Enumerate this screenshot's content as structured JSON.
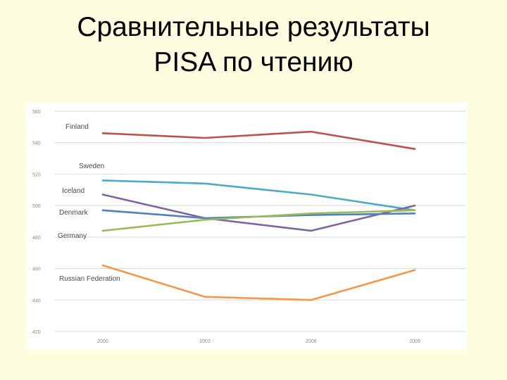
{
  "slide": {
    "title_line1": "Сравнительные результаты",
    "title_line2": "PISA по чтению"
  },
  "chart_data": {
    "type": "line",
    "title": "",
    "xlabel": "",
    "ylabel": "",
    "x": [
      "2000",
      "2003",
      "2006",
      "2009"
    ],
    "ylim": [
      420,
      560
    ],
    "yticks": [
      420,
      440,
      460,
      480,
      500,
      520,
      540,
      560
    ],
    "grid": true,
    "legend": "inline-left",
    "series": [
      {
        "name": "Finland",
        "values": [
          546,
          543,
          547,
          536
        ],
        "color": "#c0504d"
      },
      {
        "name": "Sweden",
        "values": [
          516,
          514,
          507,
          497
        ],
        "color": "#4bacc6"
      },
      {
        "name": "Iceland",
        "values": [
          507,
          492,
          484,
          500
        ],
        "color": "#8064a2"
      },
      {
        "name": "Denmark",
        "values": [
          497,
          492,
          494,
          495
        ],
        "color": "#4f81bd"
      },
      {
        "name": "Germany",
        "values": [
          484,
          491,
          495,
          497
        ],
        "color": "#9bbb59"
      },
      {
        "name": "Russian Federation",
        "values": [
          462,
          442,
          440,
          459
        ],
        "color": "#f79646"
      }
    ]
  }
}
